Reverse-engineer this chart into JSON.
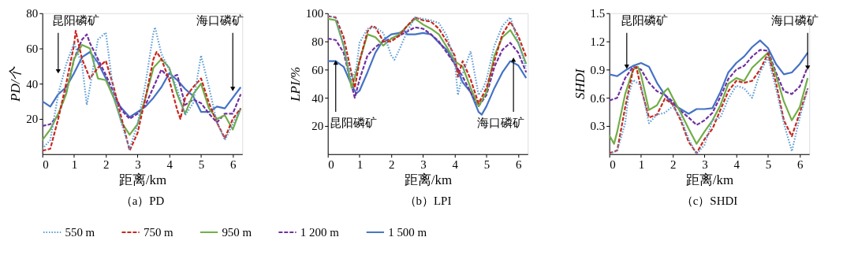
{
  "chart_data": [
    {
      "type": "line",
      "title": "（a）PD",
      "xlabel": "距离/km",
      "ylabel": "PD/个",
      "xlim": [
        0,
        6.3
      ],
      "xticks": [
        0,
        1,
        2,
        3,
        4,
        5,
        6
      ],
      "ylim": [
        0,
        80
      ],
      "yticks": [
        20,
        40,
        60,
        80
      ],
      "legend": "bottom",
      "annotations": [
        {
          "text": "昆阳磷矿",
          "x": 0.5,
          "y": 47
        },
        {
          "text": "海口磷矿",
          "x": 6.0,
          "y": 37
        }
      ],
      "series": [
        {
          "name": "550 m",
          "color": "#5b9bd5",
          "line_style": "dotted",
          "x": [
            0,
            0.25,
            0.5,
            0.75,
            1,
            1.25,
            1.4,
            1.5,
            1.75,
            2,
            2.25,
            2.5,
            2.75,
            3,
            3.25,
            3.5,
            3.55,
            3.75,
            4,
            4.25,
            4.5,
            4.75,
            5,
            5.25,
            5.5,
            5.75,
            6,
            6.25
          ],
          "values": [
            3,
            8,
            34,
            51,
            63,
            51,
            28,
            38,
            65,
            69,
            34,
            17,
            3,
            17,
            40,
            69,
            72,
            57,
            48,
            37,
            22,
            29,
            56,
            38,
            18,
            8,
            17,
            26
          ]
        },
        {
          "name": "750 m",
          "color": "#c8281e",
          "line_style": "dashed",
          "x": [
            0,
            0.25,
            0.5,
            0.75,
            1,
            1.05,
            1.25,
            1.5,
            1.75,
            2,
            2.25,
            2.5,
            2.75,
            3,
            3.25,
            3.5,
            3.6,
            3.75,
            4,
            4.25,
            4.35,
            4.5,
            4.75,
            5,
            5.25,
            5.5,
            5.75,
            6,
            6.25
          ],
          "values": [
            2,
            3,
            20,
            40,
            62,
            70,
            54,
            43,
            49,
            53,
            38,
            20,
            2,
            12,
            32,
            54,
            58,
            54,
            42,
            25,
            20,
            32,
            38,
            43,
            29,
            18,
            9,
            20,
            26
          ]
        },
        {
          "name": "950 m",
          "color": "#70ad47",
          "line_style": "solid",
          "x": [
            0,
            0.25,
            0.5,
            0.75,
            1,
            1.25,
            1.5,
            1.75,
            2,
            2.25,
            2.5,
            2.75,
            3,
            3.25,
            3.5,
            3.75,
            4,
            4.25,
            4.5,
            4.75,
            5,
            5.25,
            5.5,
            5.75,
            6,
            6.25
          ],
          "values": [
            8,
            14,
            23,
            34,
            54,
            62,
            60,
            43,
            42,
            32,
            18,
            11,
            17,
            32,
            49,
            54,
            49,
            34,
            23,
            34,
            40,
            26,
            20,
            22,
            14,
            26
          ]
        },
        {
          "name": "1 200 m",
          "color": "#7030a0",
          "line_style": "dashed",
          "x": [
            0,
            0.25,
            0.5,
            0.75,
            1,
            1.25,
            1.4,
            1.5,
            1.75,
            2,
            2.25,
            2.5,
            2.75,
            3,
            3.25,
            3.5,
            3.75,
            4,
            4.25,
            4.5,
            4.75,
            5,
            5.25,
            5.5,
            5.75,
            6,
            6.25
          ],
          "values": [
            16,
            17,
            22,
            35,
            54,
            65,
            68,
            63,
            54,
            45,
            35,
            25,
            20,
            23,
            28,
            38,
            48,
            43,
            45,
            28,
            31,
            29,
            23,
            18,
            23,
            23,
            34
          ]
        },
        {
          "name": "1 500 m",
          "color": "#4472c4",
          "line_style": "solid",
          "x": [
            0,
            0.25,
            0.5,
            0.75,
            1,
            1.25,
            1.5,
            1.75,
            2,
            2.25,
            2.5,
            2.75,
            3,
            3.25,
            3.5,
            3.75,
            4,
            4.25,
            4.5,
            4.75,
            5,
            5.25,
            5.5,
            5.75,
            6,
            6.25
          ],
          "values": [
            30,
            27,
            34,
            38,
            46,
            55,
            58,
            52,
            43,
            32,
            26,
            21,
            24,
            27,
            32,
            38,
            46,
            42,
            37,
            33,
            24,
            24,
            27,
            26,
            32,
            38
          ]
        }
      ]
    },
    {
      "type": "line",
      "title": "（b）LPI",
      "xlabel": "距离/km",
      "ylabel": "LPI/%",
      "xlim": [
        0,
        6.3
      ],
      "xticks": [
        0,
        1,
        2,
        3,
        4,
        5,
        6
      ],
      "ylim": [
        0,
        100
      ],
      "yticks": [
        20,
        40,
        60,
        80,
        100
      ],
      "legend": "bottom",
      "annotations": [
        {
          "text": "昆阳磷矿",
          "x": 0.25,
          "y": 65
        },
        {
          "text": "海口磷矿",
          "x": 5.85,
          "y": 67
        }
      ],
      "series": [
        {
          "name": "550 m",
          "color": "#5b9bd5",
          "line_style": "dotted",
          "x": [
            0,
            0.25,
            0.5,
            0.75,
            0.9,
            1,
            1.25,
            1.5,
            1.75,
            2,
            2.1,
            2.25,
            2.5,
            2.75,
            3,
            3.25,
            3.5,
            3.75,
            4,
            4.1,
            4.25,
            4.5,
            4.75,
            4.9,
            5,
            5.25,
            5.5,
            5.75,
            6,
            6.25
          ],
          "values": [
            98,
            97,
            77,
            53,
            61,
            79,
            89,
            90,
            86,
            70,
            67,
            74,
            87,
            97,
            96,
            95,
            93,
            84,
            66,
            42,
            57,
            73,
            42,
            47,
            53,
            77,
            91,
            97,
            80,
            61
          ]
        },
        {
          "name": "750 m",
          "color": "#c8281e",
          "line_style": "dashed",
          "x": [
            0,
            0.25,
            0.5,
            0.75,
            0.85,
            1,
            1.25,
            1.4,
            1.5,
            1.75,
            2,
            2.25,
            2.5,
            2.75,
            3,
            3.25,
            3.5,
            3.75,
            4,
            4.1,
            4.25,
            4.5,
            4.75,
            5,
            5.25,
            5.5,
            5.75,
            6,
            6.25
          ],
          "values": [
            98,
            97,
            83,
            57,
            47,
            66,
            87,
            91,
            90,
            80,
            80,
            84,
            91,
            97,
            95,
            94,
            89,
            80,
            70,
            55,
            66,
            53,
            36,
            47,
            66,
            85,
            94,
            84,
            69
          ]
        },
        {
          "name": "950 m",
          "color": "#70ad47",
          "line_style": "solid",
          "x": [
            0,
            0.25,
            0.5,
            0.75,
            1,
            1.25,
            1.5,
            1.75,
            2,
            2.25,
            2.5,
            2.75,
            3,
            3.25,
            3.5,
            3.75,
            4,
            4.25,
            4.5,
            4.75,
            5,
            5.25,
            5.5,
            5.75,
            6,
            6.25
          ],
          "values": [
            96,
            95,
            77,
            47,
            66,
            85,
            83,
            77,
            82,
            85,
            91,
            96,
            92,
            89,
            85,
            76,
            66,
            62,
            47,
            34,
            44,
            70,
            83,
            88,
            79,
            64
          ]
        },
        {
          "name": "1 200 m",
          "color": "#7030a0",
          "line_style": "dashed",
          "x": [
            0,
            0.25,
            0.5,
            0.75,
            0.85,
            1,
            1.25,
            1.5,
            1.75,
            2,
            2.25,
            2.5,
            2.75,
            3,
            3.25,
            3.5,
            3.75,
            4,
            4.25,
            4.5,
            4.75,
            5,
            5.25,
            5.5,
            5.75,
            6,
            6.25
          ],
          "values": [
            82,
            81,
            72,
            49,
            40,
            53,
            70,
            76,
            80,
            82,
            84,
            87,
            90,
            89,
            85,
            80,
            72,
            64,
            55,
            44,
            34,
            42,
            62,
            74,
            79,
            72,
            58
          ]
        },
        {
          "name": "1 500 m",
          "color": "#4472c4",
          "line_style": "solid",
          "x": [
            0,
            0.25,
            0.5,
            0.75,
            0.9,
            1,
            1.25,
            1.5,
            1.75,
            2,
            2.25,
            2.4,
            2.5,
            2.75,
            3,
            3.25,
            3.5,
            3.75,
            4,
            4.25,
            4.5,
            4.75,
            4.85,
            5,
            5.25,
            5.5,
            5.75,
            6,
            6.25
          ],
          "values": [
            66,
            66,
            62,
            49,
            43,
            45,
            58,
            72,
            81,
            85,
            86,
            88,
            85,
            85,
            86,
            85,
            79,
            74,
            64,
            51,
            44,
            30,
            28,
            34,
            47,
            58,
            66,
            63,
            54
          ]
        }
      ]
    },
    {
      "type": "line",
      "title": "（c）SHDI",
      "xlabel": "距离/km",
      "ylabel": "SHDI",
      "xlim": [
        0,
        6.3
      ],
      "xticks": [
        0,
        1,
        2,
        3,
        4,
        5,
        6
      ],
      "ylim": [
        0,
        1.5
      ],
      "yticks": [
        0.3,
        0.6,
        0.9,
        1.2,
        1.5
      ],
      "legend": "bottom",
      "annotations": [
        {
          "text": "昆阳磷矿",
          "x": 0.55,
          "y": 0.93
        },
        {
          "text": "海口磷矿",
          "x": 6.25,
          "y": 0.92
        }
      ],
      "series": [
        {
          "name": "550 m",
          "color": "#5b9bd5",
          "line_style": "dotted",
          "x": [
            0,
            0.25,
            0.5,
            0.6,
            0.75,
            1,
            1.25,
            1.5,
            1.75,
            2,
            2.25,
            2.5,
            2.75,
            3,
            3.25,
            3.5,
            3.75,
            4,
            4.25,
            4.5,
            4.75,
            5,
            5.25,
            5.5,
            5.75,
            6,
            6.25
          ],
          "values": [
            0,
            0.04,
            0.33,
            0.62,
            0.79,
            0.73,
            0.33,
            0.42,
            0.44,
            0.51,
            0.39,
            0.16,
            0,
            0.1,
            0.36,
            0.39,
            0.59,
            0.73,
            0.7,
            0.6,
            0.87,
            1.03,
            0.7,
            0.33,
            0.03,
            0.39,
            0.7
          ]
        },
        {
          "name": "750 m",
          "color": "#c8281e",
          "line_style": "dashed",
          "x": [
            0,
            0.25,
            0.5,
            0.75,
            0.85,
            1,
            1.25,
            1.5,
            1.75,
            2,
            2.25,
            2.5,
            2.75,
            3,
            3.25,
            3.5,
            3.75,
            4,
            4.25,
            4.5,
            4.75,
            5,
            5.25,
            5.5,
            5.75,
            6,
            6.25
          ],
          "values": [
            0.01,
            0.04,
            0.5,
            0.9,
            0.93,
            0.7,
            0.39,
            0.42,
            0.59,
            0.53,
            0.36,
            0.13,
            0.01,
            0.16,
            0.27,
            0.47,
            0.67,
            0.78,
            0.76,
            0.78,
            0.9,
            1.07,
            0.76,
            0.36,
            0.19,
            0.44,
            0.7
          ]
        },
        {
          "name": "950 m",
          "color": "#70ad47",
          "line_style": "solid",
          "x": [
            0,
            0.15,
            0.25,
            0.5,
            0.75,
            0.9,
            1,
            1.25,
            1.5,
            1.75,
            1.85,
            2,
            2.25,
            2.5,
            2.75,
            3,
            3.25,
            3.5,
            3.75,
            4,
            4.25,
            4.5,
            4.75,
            5,
            5.25,
            5.5,
            5.75,
            6,
            6.25
          ],
          "values": [
            0.2,
            0.11,
            0.24,
            0.64,
            0.9,
            0.93,
            0.84,
            0.47,
            0.52,
            0.67,
            0.7,
            0.6,
            0.44,
            0.27,
            0.11,
            0.24,
            0.36,
            0.52,
            0.75,
            0.81,
            0.78,
            0.92,
            1.0,
            1.08,
            0.84,
            0.56,
            0.36,
            0.5,
            0.81
          ]
        },
        {
          "name": "1 200 m",
          "color": "#7030a0",
          "line_style": "dashed",
          "x": [
            0,
            0.25,
            0.5,
            0.75,
            1,
            1.25,
            1.5,
            1.75,
            2,
            2.25,
            2.5,
            2.75,
            3,
            3.25,
            3.5,
            3.75,
            4,
            4.25,
            4.5,
            4.75,
            5,
            5.25,
            5.5,
            5.75,
            6,
            6.25
          ],
          "values": [
            0.57,
            0.6,
            0.81,
            0.93,
            0.9,
            0.76,
            0.67,
            0.63,
            0.56,
            0.46,
            0.39,
            0.31,
            0.36,
            0.44,
            0.61,
            0.8,
            0.9,
            0.94,
            1.04,
            1.11,
            1.1,
            0.87,
            0.67,
            0.64,
            0.72,
            0.93
          ]
        },
        {
          "name": "1 500 m",
          "color": "#4472c4",
          "line_style": "solid",
          "x": [
            0,
            0.25,
            0.5,
            0.75,
            1,
            1.25,
            1.5,
            1.75,
            2,
            2.25,
            2.5,
            2.75,
            3,
            3.25,
            3.5,
            3.75,
            4,
            4.25,
            4.5,
            4.75,
            5,
            5.25,
            5.5,
            5.75,
            6,
            6.25
          ],
          "values": [
            0.85,
            0.83,
            0.89,
            0.94,
            0.97,
            0.93,
            0.76,
            0.63,
            0.53,
            0.48,
            0.43,
            0.48,
            0.48,
            0.49,
            0.66,
            0.87,
            0.97,
            1.04,
            1.14,
            1.21,
            1.13,
            0.96,
            0.85,
            0.87,
            0.96,
            1.08
          ]
        }
      ]
    }
  ]
}
